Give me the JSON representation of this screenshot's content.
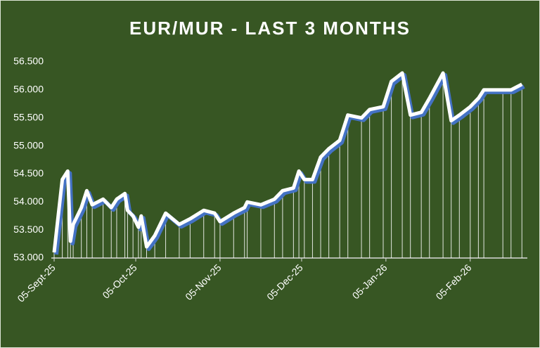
{
  "chart_data": {
    "type": "line",
    "title": "EUR/MUR - LAST 3 MONTHS",
    "x": [
      "2025-09-05",
      "2025-09-08",
      "2025-09-10",
      "2025-09-11",
      "2025-09-12",
      "2025-09-15",
      "2025-09-17",
      "2025-09-19",
      "2025-09-23",
      "2025-09-26",
      "2025-09-28",
      "2025-10-01",
      "2025-10-02",
      "2025-10-04",
      "2025-10-06",
      "2025-10-07",
      "2025-10-09",
      "2025-10-12",
      "2025-10-16",
      "2025-10-21",
      "2025-10-25",
      "2025-10-30",
      "2025-11-03",
      "2025-11-05",
      "2025-11-10",
      "2025-11-14",
      "2025-11-15",
      "2025-11-20",
      "2025-11-25",
      "2025-11-28",
      "2025-12-02",
      "2025-12-04",
      "2025-12-06",
      "2025-12-09",
      "2025-12-12",
      "2025-12-15",
      "2025-12-19",
      "2025-12-22",
      "2025-12-27",
      "2025-12-30",
      "2026-01-04",
      "2026-01-07",
      "2026-01-11",
      "2026-01-14",
      "2026-01-18",
      "2026-01-21",
      "2026-01-26",
      "2026-01-29",
      "2026-02-01",
      "2026-02-05",
      "2026-02-08",
      "2026-02-10",
      "2026-02-17",
      "2026-02-20",
      "2026-02-24"
    ],
    "series": [
      {
        "name": "EUR/MUR",
        "color": "#ffffff",
        "values": [
          53.1,
          54.4,
          54.55,
          53.3,
          53.6,
          53.9,
          54.2,
          53.95,
          54.05,
          53.9,
          54.05,
          54.15,
          53.85,
          53.75,
          53.55,
          53.75,
          53.2,
          53.4,
          53.8,
          53.6,
          53.7,
          53.85,
          53.8,
          53.65,
          53.8,
          53.9,
          54.0,
          53.95,
          54.05,
          54.2,
          54.25,
          54.55,
          54.4,
          54.4,
          54.8,
          54.95,
          55.1,
          55.55,
          55.5,
          55.65,
          55.7,
          56.15,
          56.3,
          55.55,
          55.6,
          55.85,
          56.3,
          55.45,
          55.55,
          55.7,
          55.85,
          56.0,
          56.0,
          56.0,
          56.1
        ]
      }
    ],
    "xlim": [
      "2025-09-05",
      "2026-02-26"
    ],
    "xticks": [
      {
        "value": "2025-09-05",
        "label": "05-Sept-25"
      },
      {
        "value": "2025-10-05",
        "label": "05-Oct-25"
      },
      {
        "value": "2025-11-05",
        "label": "05-Nov-25"
      },
      {
        "value": "2025-12-05",
        "label": "05-Dec-25"
      },
      {
        "value": "2026-01-05",
        "label": "05-Jan-26"
      },
      {
        "value": "2026-02-05",
        "label": "05-Feb-26"
      }
    ],
    "ylim": [
      53,
      56.5
    ],
    "yticks": [
      {
        "value": 53,
        "label": "53.000"
      },
      {
        "value": 53.5,
        "label": "53.500"
      },
      {
        "value": 54,
        "label": "54.000"
      },
      {
        "value": 54.5,
        "label": "54.500"
      },
      {
        "value": 55,
        "label": "55.000"
      },
      {
        "value": 55.5,
        "label": "55.500"
      },
      {
        "value": 56,
        "label": "56.000"
      },
      {
        "value": 56.5,
        "label": "56.500"
      }
    ],
    "grid": false
  }
}
